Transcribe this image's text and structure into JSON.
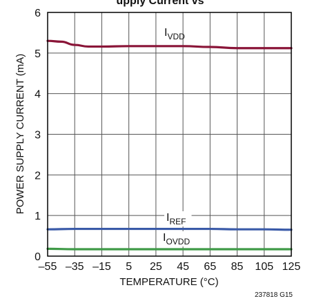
{
  "chart_data": {
    "type": "line",
    "title": "",
    "title_fragment": "upply Current vs",
    "xlabel": "TEMPERATURE (°C)",
    "ylabel": "POWER SUPPLY CURRENT (mA)",
    "xlim": [
      -55,
      125
    ],
    "ylim": [
      0,
      6
    ],
    "xticks": [
      -55,
      -35,
      -15,
      5,
      25,
      45,
      65,
      85,
      105,
      125
    ],
    "xtick_labels": [
      "–55",
      "–35",
      "–15",
      "5",
      "25",
      "45",
      "65",
      "85",
      "105",
      "125"
    ],
    "yticks": [
      0,
      1,
      2,
      3,
      4,
      5,
      6
    ],
    "grid": true,
    "legend": "inline labels",
    "series": [
      {
        "name": "IVDD",
        "label_main": "I",
        "label_sub": "VDD",
        "color": "#8a1538",
        "x": [
          -55,
          -45,
          -35,
          -25,
          -15,
          5,
          25,
          45,
          65,
          85,
          105,
          125
        ],
        "y": [
          5.3,
          5.28,
          5.2,
          5.16,
          5.16,
          5.17,
          5.17,
          5.17,
          5.15,
          5.12,
          5.12,
          5.12
        ]
      },
      {
        "name": "IREF",
        "label_main": "I",
        "label_sub": "REF",
        "color": "#3a5aa8",
        "x": [
          -55,
          -35,
          -15,
          5,
          25,
          45,
          65,
          85,
          105,
          125
        ],
        "y": [
          0.66,
          0.67,
          0.67,
          0.67,
          0.67,
          0.67,
          0.67,
          0.66,
          0.66,
          0.65
        ]
      },
      {
        "name": "IOVDD",
        "label_main": "I",
        "label_sub": "OVDD",
        "color": "#3f9a47",
        "x": [
          -55,
          -35,
          -15,
          5,
          25,
          45,
          65,
          85,
          105,
          125
        ],
        "y": [
          0.18,
          0.17,
          0.17,
          0.17,
          0.17,
          0.17,
          0.17,
          0.17,
          0.17,
          0.17
        ]
      }
    ],
    "figure_id": "237818 G15"
  }
}
